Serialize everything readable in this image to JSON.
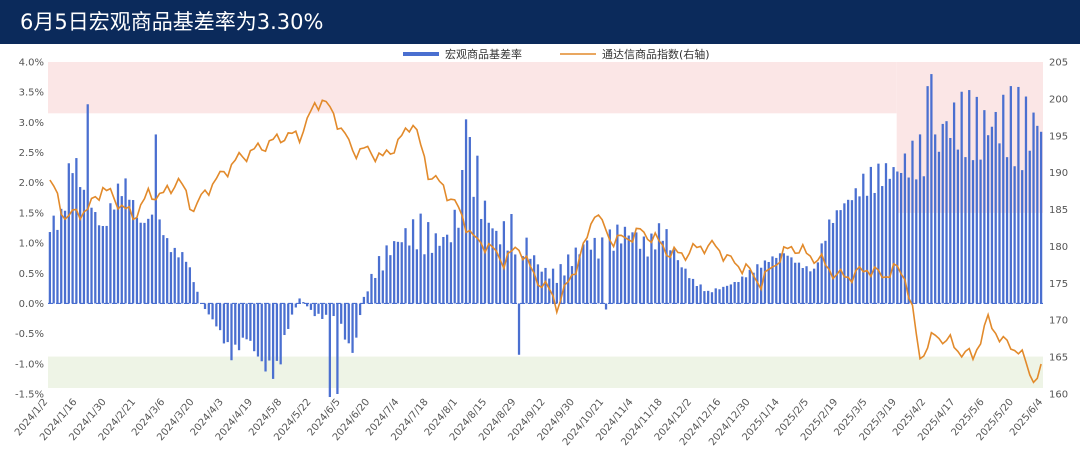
{
  "header": {
    "title": "6月5日宏观商品基差率为3.30%"
  },
  "colors": {
    "header_bg": "#0b2a5b",
    "bar": "#4a6fd0",
    "line": "#e28a2b",
    "band_high": "#fbe6e6",
    "band_low": "#eef4e6",
    "zero_line": "#4a6fd0"
  },
  "chart_data": {
    "type": "bar+line",
    "legend": {
      "placement": "top-center",
      "entries": [
        {
          "label": "宏观商品基差率",
          "kind": "bar"
        },
        {
          "label": "通达信商品指数(右轴)",
          "kind": "line"
        }
      ]
    },
    "y_left": {
      "min": -1.5,
      "max": 4.0,
      "ticks": [
        "4.0%",
        "3.5%",
        "3.0%",
        "2.5%",
        "2.0%",
        "1.5%",
        "1.0%",
        "0.5%",
        "0.0%",
        "-0.5%",
        "-1.0%",
        "-1.5%"
      ]
    },
    "y_right": {
      "min": 160,
      "max": 205,
      "ticks": [
        "205",
        "200",
        "195",
        "190",
        "185",
        "180",
        "175",
        "170",
        "165",
        "160"
      ]
    },
    "x_ticks": [
      "2024/1/2",
      "2024/1/16",
      "2024/1/30",
      "2024/2/21",
      "2024/3/6",
      "2024/3/20",
      "2024/4/3",
      "2024/4/19",
      "2024/5/8",
      "2024/5/22",
      "2024/6/5",
      "2024/6/20",
      "2024/7/4",
      "2024/7/18",
      "2024/8/1",
      "2024/8/15",
      "2024/8/29",
      "2024/9/12",
      "2024/9/30",
      "2024/10/21",
      "2024/11/4",
      "2024/11/18",
      "2024/12/2",
      "2024/12/16",
      "2024/12/30",
      "2025/1/14",
      "2025/2/5",
      "2025/2/19",
      "2025/3/5",
      "2025/3/19",
      "2025/4/2",
      "2025/4/17",
      "2025/5/6",
      "2025/5/20",
      "2025/6/4"
    ],
    "bands": [
      {
        "x_from": "2024/1/2",
        "x_to": "2025/3/19",
        "y_from": 3.15,
        "y_to": 4.0,
        "color": "#fbe6e6"
      },
      {
        "x_from": "2025/3/19",
        "x_to": "2025/6/5",
        "y_from": 1.5,
        "y_to": 4.0,
        "color": "#fbe6e6"
      },
      {
        "x_from": "2024/1/2",
        "x_to": "2025/6/5",
        "y_from": -1.4,
        "y_to": -0.88,
        "color": "#eef4e6"
      }
    ],
    "basis_anchors": [
      [
        0,
        1.4
      ],
      [
        3,
        1.5
      ],
      [
        6,
        2.6
      ],
      [
        10,
        1.9
      ],
      [
        14,
        1.3
      ],
      [
        18,
        2.0
      ],
      [
        20,
        2.2
      ],
      [
        24,
        1.4
      ],
      [
        28,
        1.6
      ],
      [
        32,
        1.0
      ],
      [
        36,
        0.8
      ],
      [
        40,
        0.0
      ],
      [
        44,
        -0.4
      ],
      [
        48,
        -0.9
      ],
      [
        52,
        -0.6
      ],
      [
        56,
        -1.1
      ],
      [
        60,
        -1.2
      ],
      [
        63,
        -0.4
      ],
      [
        66,
        0.1
      ],
      [
        70,
        -0.2
      ],
      [
        76,
        -0.3
      ],
      [
        80,
        -0.9
      ],
      [
        83,
        0.1
      ],
      [
        86,
        0.6
      ],
      [
        90,
        1.0
      ],
      [
        94,
        1.2
      ],
      [
        98,
        1.3
      ],
      [
        102,
        1.1
      ],
      [
        106,
        1.2
      ],
      [
        110,
        2.2
      ],
      [
        112,
        2.6
      ],
      [
        114,
        1.8
      ],
      [
        118,
        1.2
      ],
      [
        122,
        1.3
      ],
      [
        126,
        1.0
      ],
      [
        130,
        0.6
      ],
      [
        134,
        0.5
      ],
      [
        138,
        0.8
      ],
      [
        142,
        1.1
      ],
      [
        146,
        1.0
      ],
      [
        150,
        1.2
      ],
      [
        154,
        1.3
      ],
      [
        158,
        1.0
      ],
      [
        162,
        1.3
      ],
      [
        166,
        0.8
      ],
      [
        170,
        0.4
      ],
      [
        174,
        0.2
      ],
      [
        178,
        0.3
      ],
      [
        182,
        0.4
      ],
      [
        186,
        0.6
      ],
      [
        190,
        0.8
      ],
      [
        194,
        0.9
      ],
      [
        198,
        0.7
      ],
      [
        202,
        0.6
      ],
      [
        206,
        1.4
      ],
      [
        210,
        1.8
      ],
      [
        214,
        2.1
      ],
      [
        218,
        2.2
      ],
      [
        222,
        2.4
      ],
      [
        226,
        2.5
      ],
      [
        230,
        2.6
      ],
      [
        233,
        2.8
      ],
      [
        236,
        3.2
      ]
    ],
    "basis_spikes": [
      [
        10,
        3.3
      ],
      [
        28,
        2.8
      ],
      [
        74,
        -1.55
      ],
      [
        76,
        -1.5
      ],
      [
        110,
        3.05
      ],
      [
        124,
        -0.85
      ],
      [
        147,
        -0.1
      ],
      [
        232,
        3.6
      ],
      [
        233,
        3.8
      ],
      [
        234,
        2.8
      ]
    ],
    "index_anchors": [
      [
        0,
        189
      ],
      [
        4,
        184
      ],
      [
        10,
        185
      ],
      [
        14,
        188
      ],
      [
        18,
        186
      ],
      [
        22,
        184
      ],
      [
        26,
        187
      ],
      [
        30,
        187
      ],
      [
        34,
        189
      ],
      [
        38,
        185
      ],
      [
        42,
        188
      ],
      [
        46,
        190
      ],
      [
        50,
        192
      ],
      [
        54,
        193
      ],
      [
        58,
        194
      ],
      [
        62,
        195
      ],
      [
        66,
        195
      ],
      [
        70,
        199
      ],
      [
        72,
        200
      ],
      [
        76,
        197
      ],
      [
        80,
        193
      ],
      [
        84,
        193
      ],
      [
        88,
        192
      ],
      [
        92,
        194
      ],
      [
        96,
        197
      ],
      [
        100,
        190
      ],
      [
        104,
        188
      ],
      [
        108,
        185
      ],
      [
        112,
        181
      ],
      [
        116,
        180
      ],
      [
        120,
        178
      ],
      [
        124,
        180
      ],
      [
        128,
        176
      ],
      [
        132,
        174
      ],
      [
        134,
        172
      ],
      [
        138,
        176
      ],
      [
        142,
        181
      ],
      [
        144,
        185
      ],
      [
        148,
        181
      ],
      [
        152,
        181
      ],
      [
        156,
        182
      ],
      [
        160,
        181
      ],
      [
        164,
        179
      ],
      [
        168,
        179
      ],
      [
        172,
        180
      ],
      [
        176,
        180
      ],
      [
        180,
        178
      ],
      [
        184,
        177
      ],
      [
        188,
        175
      ],
      [
        192,
        178
      ],
      [
        196,
        180
      ],
      [
        200,
        179
      ],
      [
        204,
        178
      ],
      [
        208,
        176
      ],
      [
        212,
        176
      ],
      [
        216,
        177
      ],
      [
        220,
        176
      ],
      [
        224,
        177
      ],
      [
        226,
        176
      ],
      [
        228,
        171
      ],
      [
        230,
        165
      ],
      [
        234,
        168
      ],
      [
        238,
        167
      ],
      [
        240,
        166
      ],
      [
        244,
        165
      ],
      [
        248,
        170
      ],
      [
        252,
        167
      ],
      [
        256,
        166
      ],
      [
        260,
        162
      ],
      [
        262,
        163
      ]
    ],
    "n_points": 263
  }
}
